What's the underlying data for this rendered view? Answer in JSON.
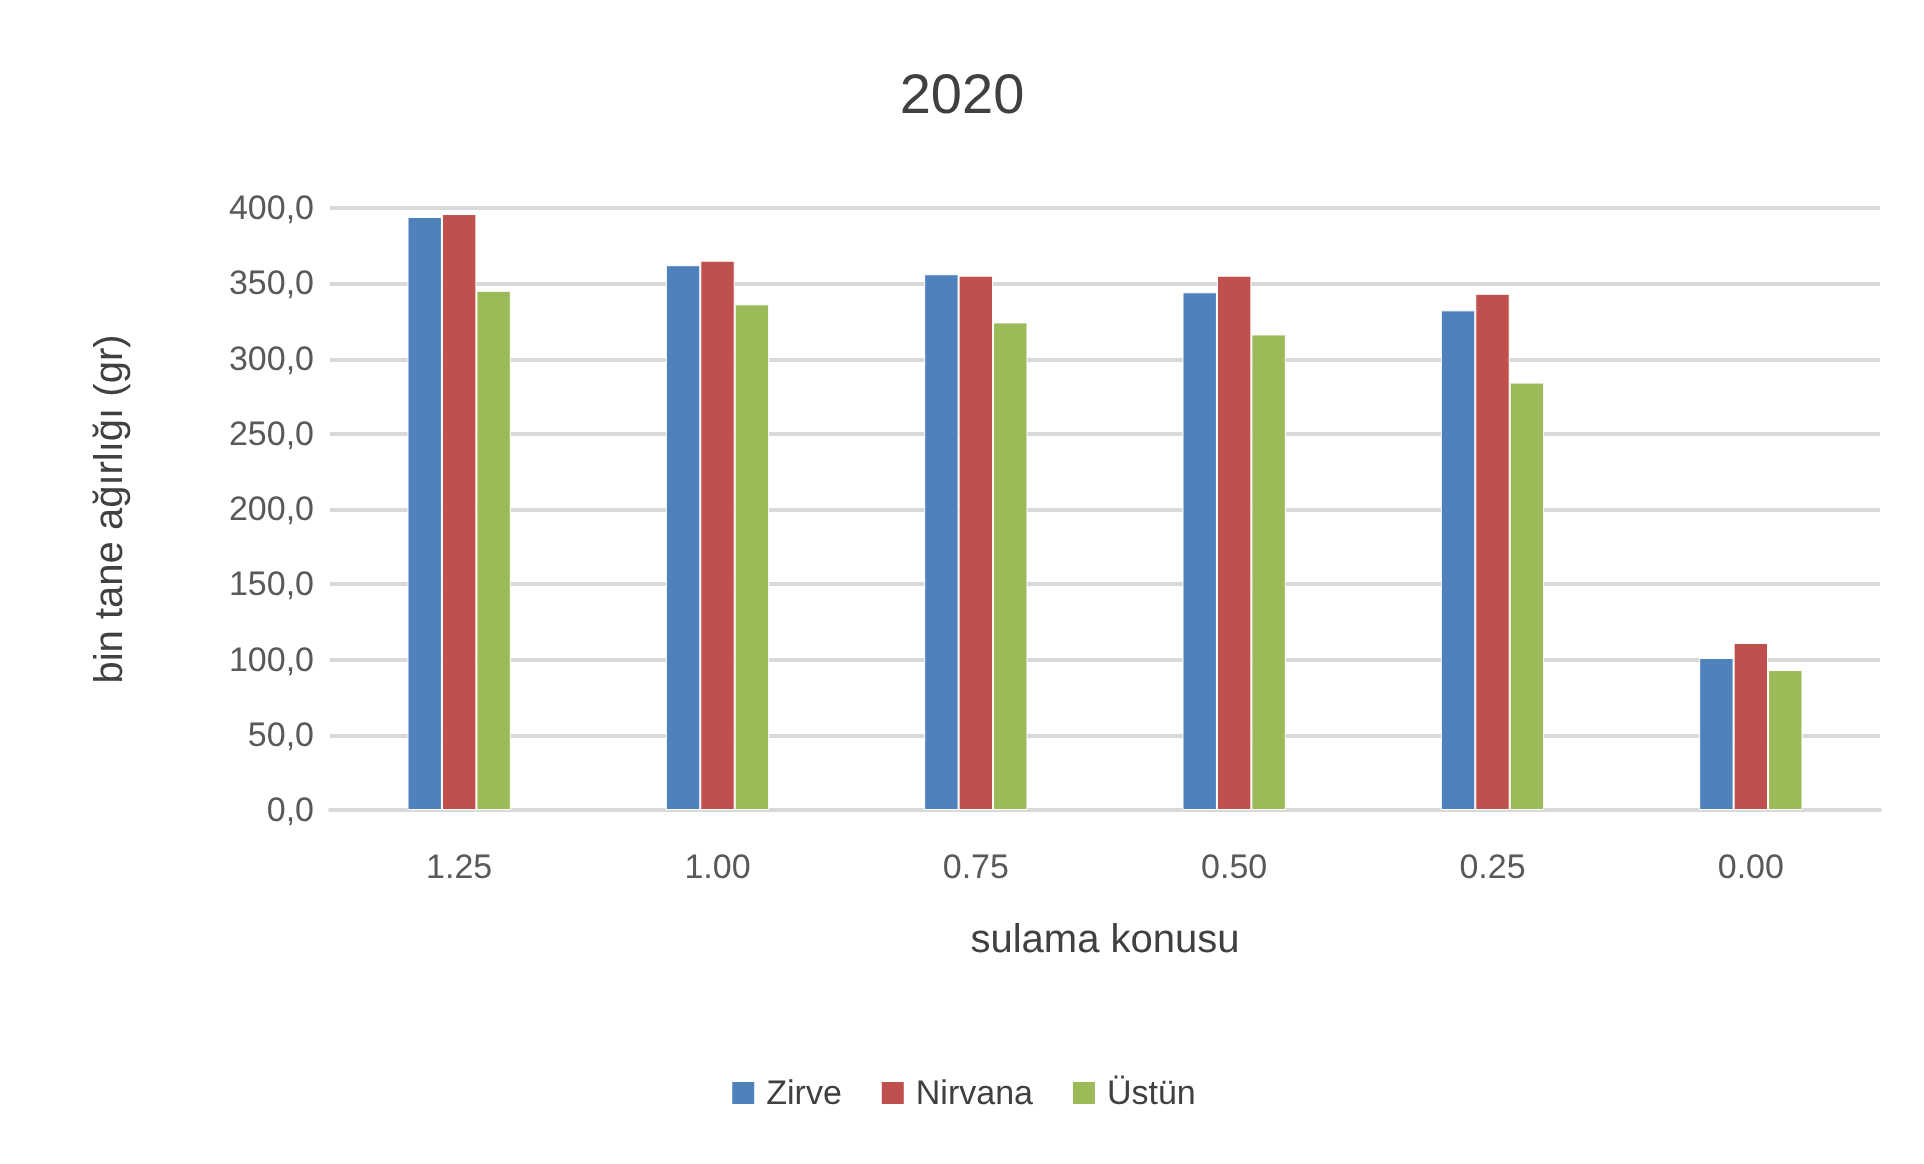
{
  "chart_data": {
    "type": "bar",
    "title": "2020",
    "xlabel": "sulama konusu",
    "ylabel": "bin tane ağırlığı (gr)",
    "categories": [
      "1.25",
      "1.00",
      "0.75",
      "0.50",
      "0.25",
      "0.00"
    ],
    "series": [
      {
        "name": "Zirve",
        "color": "#4f81bd",
        "values": [
          394,
          362,
          356,
          344,
          332,
          101
        ]
      },
      {
        "name": "Nirvana",
        "color": "#c0504d",
        "values": [
          396,
          365,
          355,
          355,
          343,
          111
        ]
      },
      {
        "name": "Üstün",
        "color": "#9bbb59",
        "values": [
          345,
          336,
          324,
          316,
          284,
          93
        ]
      }
    ],
    "ylim": [
      0,
      400
    ],
    "yticks": [
      {
        "value": 0,
        "label": "0,0"
      },
      {
        "value": 50,
        "label": "50,0"
      },
      {
        "value": 100,
        "label": "100,0"
      },
      {
        "value": 150,
        "label": "150,0"
      },
      {
        "value": 200,
        "label": "200,0"
      },
      {
        "value": 250,
        "label": "250,0"
      },
      {
        "value": 300,
        "label": "300,0"
      },
      {
        "value": 350,
        "label": "350,0"
      },
      {
        "value": 400,
        "label": "400,0"
      }
    ],
    "grid": "y",
    "legend": "bottom"
  }
}
